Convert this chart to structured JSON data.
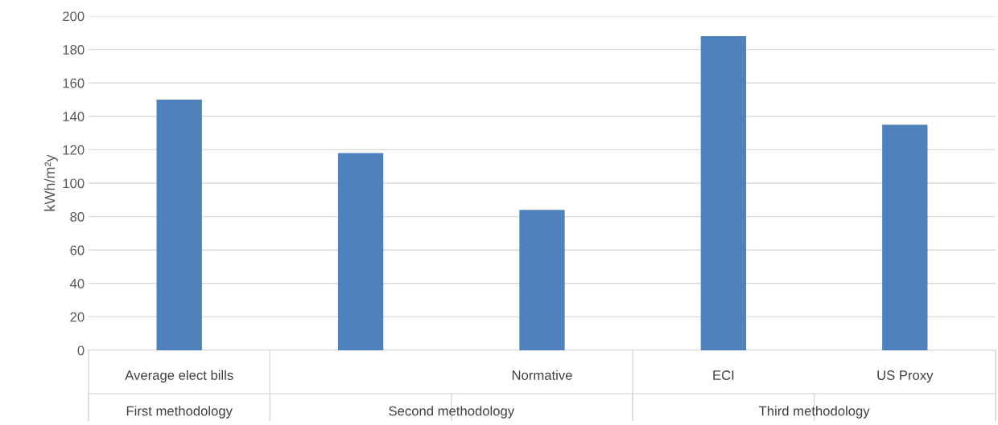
{
  "chart_data": {
    "type": "bar",
    "ylabel": "kWh/m²y",
    "categories": [
      "Average elect bills",
      null,
      "Normative",
      "ECI",
      "US Proxy"
    ],
    "values": [
      150,
      118,
      84,
      188,
      135
    ],
    "color": "#4f81bd",
    "ylim": [
      0,
      200
    ],
    "yticks": [
      0,
      20,
      40,
      60,
      80,
      100,
      120,
      140,
      160,
      180,
      200
    ],
    "grid": "y",
    "annotations": [
      "First methodology",
      "Second methodology",
      "Third methodology"
    ]
  }
}
